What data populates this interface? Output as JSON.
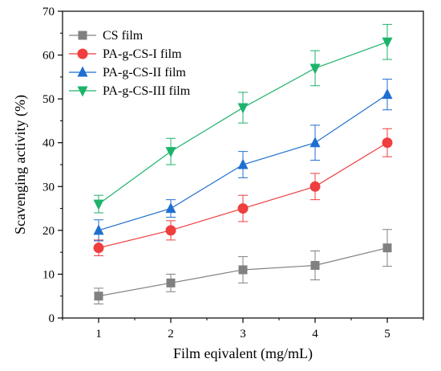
{
  "chart_data": {
    "type": "line",
    "title": "",
    "xlabel": "Film eqivalent (mg/mL)",
    "ylabel": "Scavenging activity (%)",
    "x": [
      1,
      2,
      3,
      4,
      5
    ],
    "x_ticks": [
      "1",
      "2",
      "3",
      "4",
      "5"
    ],
    "y_ticks": [
      "0",
      "10",
      "20",
      "30",
      "40",
      "50",
      "60",
      "70"
    ],
    "xlim": [
      0.5,
      5.5
    ],
    "ylim": [
      0,
      70
    ],
    "grid": false,
    "legend_position": "top-left",
    "series": [
      {
        "name": "CS film",
        "marker": "square",
        "color": "#808080",
        "values": [
          5,
          8,
          11,
          12,
          16
        ],
        "errors": [
          1.8,
          2.0,
          3.0,
          3.3,
          4.2
        ]
      },
      {
        "name": "PA-g-CS-I film",
        "marker": "circle",
        "color": "#ef3e3e",
        "values": [
          16,
          20,
          25,
          30,
          40
        ],
        "errors": [
          1.8,
          2.2,
          3.0,
          3.0,
          3.2
        ]
      },
      {
        "name": "PA-g-CS-II film",
        "marker": "triangle-up",
        "color": "#1f6fd1",
        "values": [
          20,
          25,
          35,
          40,
          51
        ],
        "errors": [
          2.4,
          2.0,
          3.0,
          4.0,
          3.5
        ]
      },
      {
        "name": "PA-g-CS-III film",
        "marker": "triangle-down",
        "color": "#1db36b",
        "values": [
          26,
          38,
          48,
          57,
          63
        ],
        "errors": [
          2.0,
          3.0,
          3.5,
          4.0,
          4.0
        ]
      }
    ]
  }
}
